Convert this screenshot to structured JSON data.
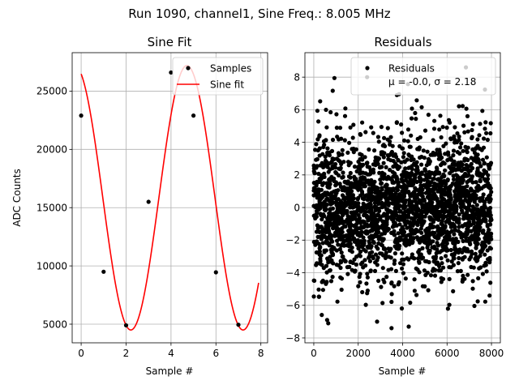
{
  "figure_title": "Run 1090, channel1, Sine Freq.: 8.005 MHz",
  "colors": {
    "fit": "#ff0000",
    "points": "#000000",
    "grid": "#b0b0b0"
  },
  "chart_data": [
    {
      "type": "line",
      "title": "Sine Fit",
      "xlabel": "Sample #",
      "ylabel": "ADC Counts",
      "xlim": [
        -0.4,
        8.3
      ],
      "ylim": [
        3400,
        28300
      ],
      "xticks": [
        0,
        2,
        4,
        6,
        8
      ],
      "xtick_labels": [
        "0",
        "2",
        "4",
        "6",
        "8"
      ],
      "yticks": [
        5000,
        10000,
        15000,
        20000,
        25000
      ],
      "ytick_labels": [
        "5000",
        "10000",
        "15000",
        "20000",
        "25000"
      ],
      "grid": true,
      "legend_position": "top-right",
      "series": [
        {
          "name": "Samples",
          "kind": "scatter",
          "x": [
            0,
            1,
            2,
            3,
            4,
            5,
            6,
            7
          ],
          "y": [
            22900,
            9500,
            4900,
            15500,
            26600,
            22900,
            9450,
            4950
          ]
        },
        {
          "name": "Sine fit",
          "kind": "line",
          "model": {
            "offset": 15850,
            "amplitude": 11350,
            "period": 4.995,
            "phase": 1.93,
            "x_start": 0,
            "x_end": 7.9
          }
        }
      ]
    },
    {
      "type": "scatter",
      "title": "Residuals",
      "xlabel": "Sample #",
      "ylabel": "",
      "xlim": [
        -400,
        8400
      ],
      "ylim": [
        -8.3,
        9.5
      ],
      "xticks": [
        0,
        2000,
        4000,
        6000,
        8000
      ],
      "xtick_labels": [
        "0",
        "2000",
        "4000",
        "6000",
        "8000"
      ],
      "yticks": [
        -8,
        -6,
        -4,
        -2,
        0,
        2,
        4,
        6,
        8
      ],
      "ytick_labels": [
        "−8",
        "−6",
        "−4",
        "−2",
        "0",
        "2",
        "4",
        "6",
        "8"
      ],
      "grid": true,
      "legend_position": "top-right",
      "series": [
        {
          "name": "Residuals",
          "stats_line": "μ = -0.0, σ = 2.18",
          "n_points": 8000,
          "x_range": [
            0,
            8000
          ],
          "mean": 0.0,
          "std": 2.18,
          "envelope": [
            -7.4,
            8.6
          ],
          "highlight_points": [
            {
              "x": 6850,
              "y": 8.6
            },
            {
              "x": 2400,
              "y": 8.0
            },
            {
              "x": 3500,
              "y": -7.4
            },
            {
              "x": 600,
              "y": -6.9
            },
            {
              "x": 650,
              "y": -7.1
            },
            {
              "x": 2850,
              "y": -7.0
            }
          ]
        }
      ]
    }
  ]
}
